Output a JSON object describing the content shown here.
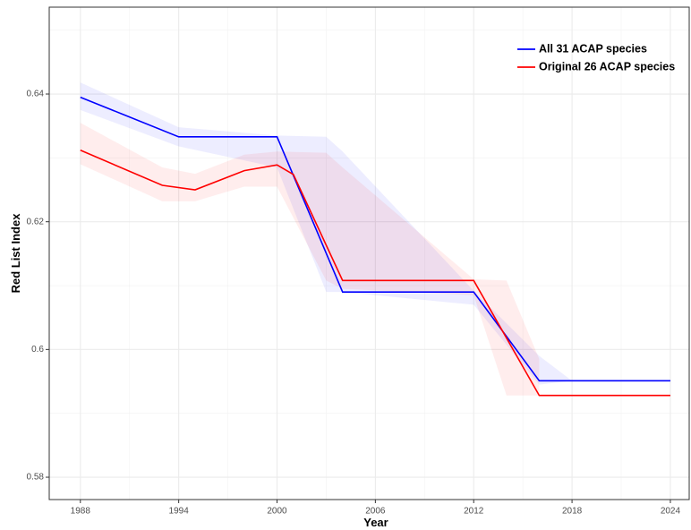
{
  "chart_data": {
    "type": "line",
    "x_label": "Year",
    "y_label": "Red List Index",
    "xlim": [
      1986.1,
      2025.15
    ],
    "ylim": [
      0.5765,
      0.6536
    ],
    "xticks": [
      1988,
      1994,
      2000,
      2006,
      2012,
      2018,
      2024
    ],
    "yticks": [
      0.58,
      0.6,
      0.62,
      0.64
    ],
    "grid": true,
    "legend": "top-right",
    "series": [
      {
        "name": "All 31 ACAP species",
        "color": "#0000ff",
        "x": [
          1988,
          1994,
          2000,
          2004,
          2012,
          2016,
          2024
        ],
        "values": [
          0.6395,
          0.6333,
          0.6333,
          0.609,
          0.609,
          0.5951,
          0.5951
        ],
        "band": {
          "x": [
            1988,
            1994,
            2000,
            2003,
            2004,
            2012,
            2016,
            2018
          ],
          "lower": [
            0.6375,
            0.6318,
            0.6285,
            0.609,
            0.609,
            0.607,
            0.5945,
            0.5951
          ],
          "upper": [
            0.6418,
            0.6348,
            0.6335,
            0.6333,
            0.631,
            0.6092,
            0.599,
            0.5951
          ]
        }
      },
      {
        "name": "Original 26 ACAP species",
        "color": "#ff0000",
        "x": [
          1988,
          1993,
          1995,
          1998,
          2000,
          2001,
          2004,
          2012,
          2016,
          2024
        ],
        "values": [
          0.6312,
          0.6257,
          0.625,
          0.628,
          0.6289,
          0.6274,
          0.6108,
          0.6108,
          0.5928,
          0.5928
        ],
        "band": {
          "x": [
            1988,
            1993,
            1995,
            1998,
            2000,
            2003,
            2004,
            2012,
            2014,
            2016
          ],
          "lower": [
            0.629,
            0.6232,
            0.6232,
            0.6255,
            0.6255,
            0.6108,
            0.6095,
            0.6085,
            0.5928,
            0.5928
          ],
          "upper": [
            0.6355,
            0.6285,
            0.6275,
            0.6305,
            0.631,
            0.6308,
            0.6285,
            0.611,
            0.6108,
            0.5985
          ]
        }
      }
    ]
  }
}
